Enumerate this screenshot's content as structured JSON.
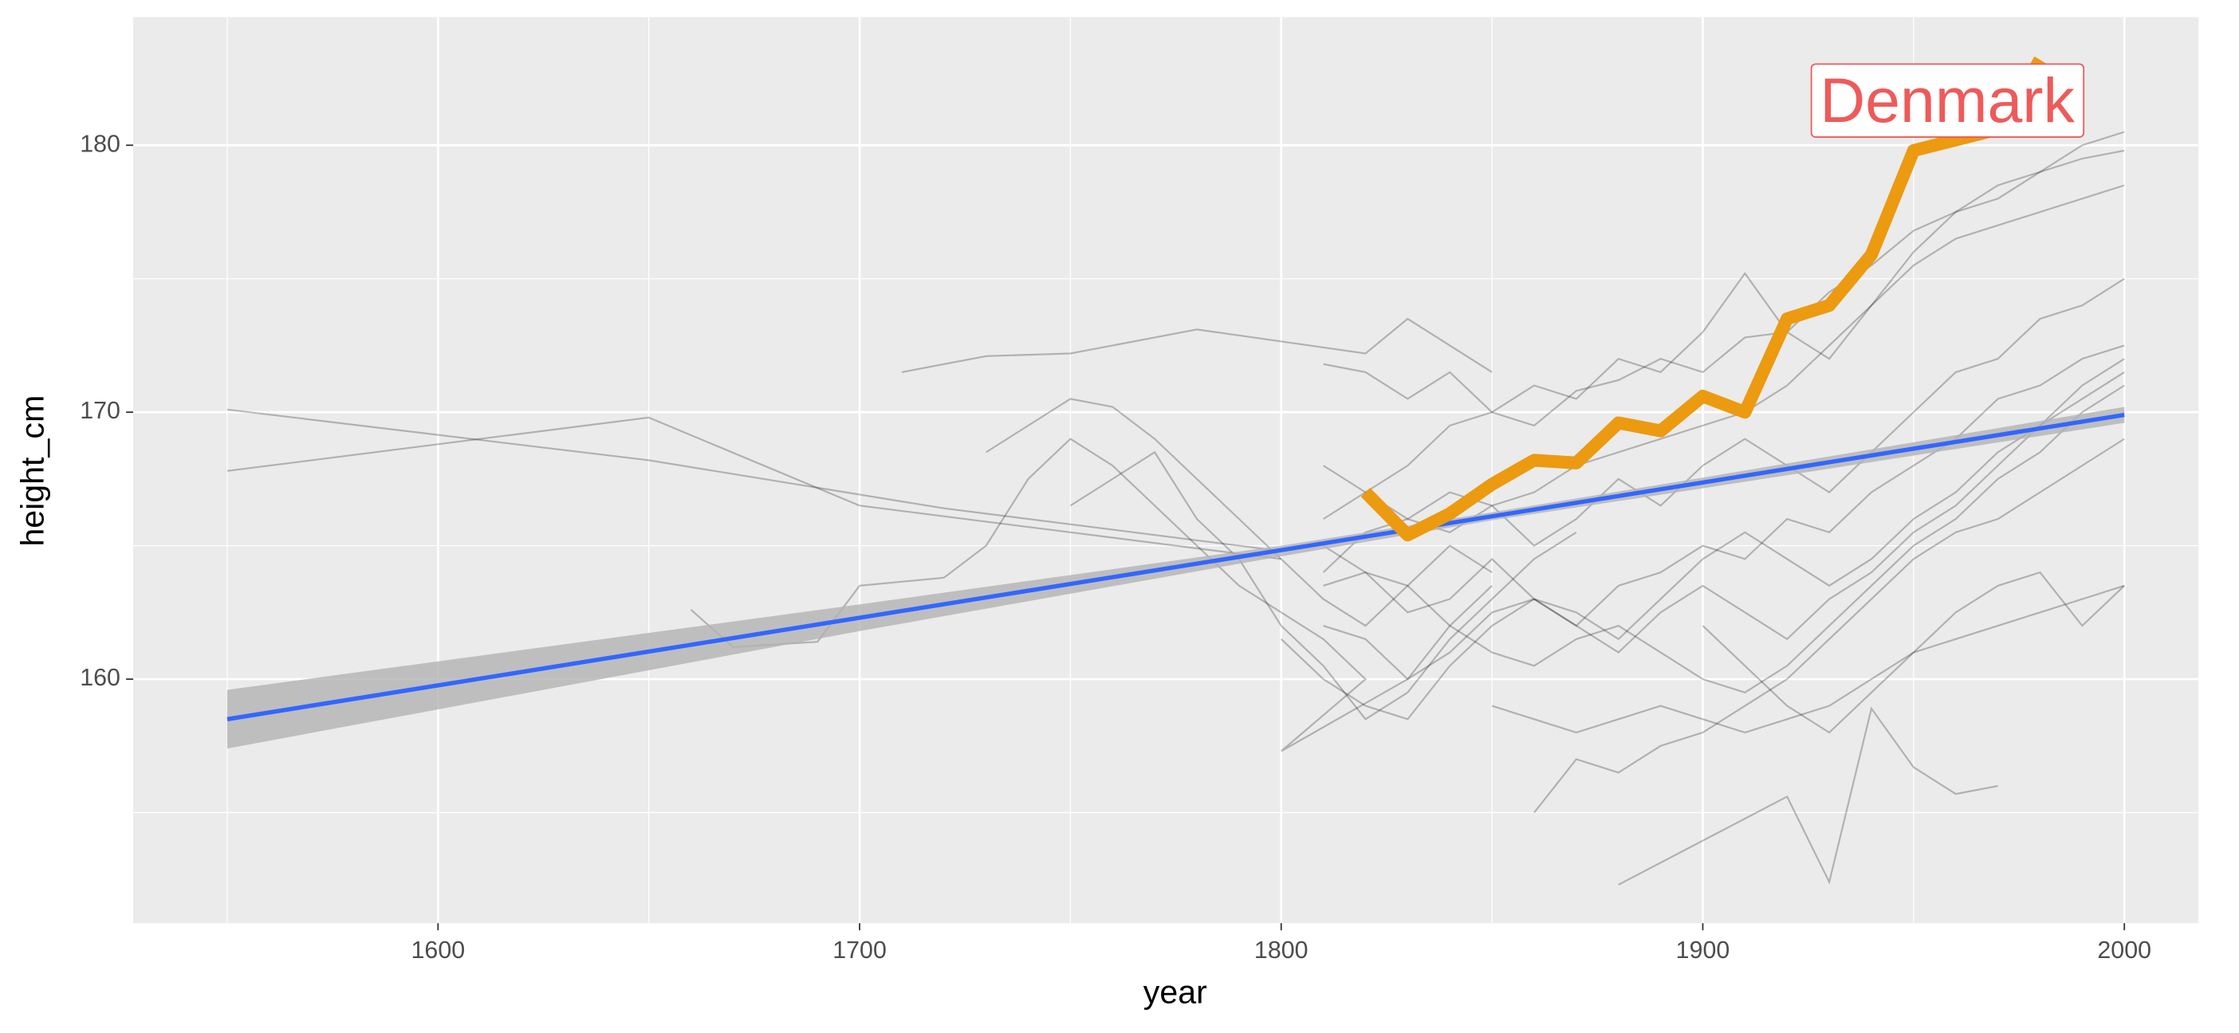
{
  "chart_data": {
    "type": "line",
    "x_label": "year",
    "y_label": "height_cm",
    "xlim": [
      1527.7,
      2017.6
    ],
    "ylim": [
      150.86,
      184.8
    ],
    "xticks": [
      1600,
      1700,
      1800,
      1900,
      2000
    ],
    "yticks": [
      160,
      170,
      180
    ],
    "x_minor_ticks": [
      1550,
      1650,
      1750,
      1850,
      1950
    ],
    "y_minor_ticks": [
      155,
      165,
      175
    ],
    "grid": true,
    "lines_color": "#000000",
    "lines": [
      {
        "x": [
          1550,
          1650,
          1720,
          1780,
          1800
        ],
        "values": [
          170.1,
          168.2,
          166.4,
          165.2,
          164.8
        ]
      },
      {
        "x": [
          1550,
          1650,
          1700,
          1750,
          1800
        ],
        "values": [
          167.8,
          169.8,
          166.5,
          165.5,
          164.5
        ]
      },
      {
        "x": [
          1710,
          1730,
          1750,
          1780,
          1820,
          1830,
          1850
        ],
        "values": [
          171.5,
          172.1,
          172.2,
          173.1,
          172.2,
          173.5,
          171.5
        ]
      },
      {
        "x": [
          1660,
          1670,
          1690,
          1700,
          1720
        ],
        "values": [
          162.6,
          161.2,
          161.4,
          163.5,
          163.8
        ]
      },
      {
        "x": [
          1880,
          1920,
          1930,
          1940,
          1950,
          1960,
          1970
        ],
        "values": [
          152.3,
          155.6,
          152.4,
          158.9,
          156.7,
          155.7,
          156.0
        ]
      },
      {
        "x": [
          1810,
          1820,
          1830,
          1840,
          1850,
          1860,
          1870,
          1880,
          1890,
          1900,
          1910,
          1920,
          1930,
          1940,
          1950,
          1960,
          1970,
          1980,
          1990,
          2000
        ],
        "values": [
          171.8,
          171.5,
          170.5,
          171.5,
          170.0,
          169.5,
          170.8,
          171.2,
          172.0,
          171.5,
          172.8,
          173.0,
          174.5,
          175.5,
          176.8,
          177.5,
          178.5,
          179.0,
          179.5,
          179.8
        ]
      },
      {
        "x": [
          1810,
          1820,
          1830,
          1840,
          1850,
          1860,
          1870,
          1880,
          1890,
          1900,
          1910,
          1920,
          1930,
          1940,
          1950,
          1960,
          1970,
          1980,
          1990,
          2000
        ],
        "values": [
          168.0,
          167.0,
          166.0,
          165.5,
          166.5,
          167.0,
          168.0,
          168.5,
          169.0,
          169.5,
          170.0,
          171.0,
          172.5,
          174.0,
          175.5,
          176.5,
          177.0,
          177.5,
          178.0,
          178.5
        ]
      },
      {
        "x": [
          1810,
          1820,
          1830,
          1840,
          1850,
          1860,
          1870,
          1880,
          1890,
          1900,
          1910,
          1920,
          1930,
          1940,
          1950,
          1960,
          1970,
          1980,
          1990,
          2000
        ],
        "values": [
          163.5,
          164.0,
          162.5,
          163.0,
          164.5,
          163.0,
          162.0,
          163.5,
          164.0,
          165.0,
          164.5,
          166.0,
          165.5,
          167.0,
          168.0,
          169.0,
          170.5,
          171.0,
          172.0,
          172.5
        ]
      },
      {
        "x": [
          1810,
          1820,
          1830,
          1840,
          1850,
          1860,
          1870,
          1880,
          1890,
          1900,
          1910,
          1920,
          1930,
          1940,
          1950,
          1960,
          1970,
          1980,
          1990,
          2000
        ],
        "values": [
          165.0,
          164.0,
          163.5,
          162.0,
          161.0,
          160.5,
          161.5,
          162.0,
          161.0,
          160.0,
          159.5,
          160.5,
          162.0,
          163.5,
          165.0,
          166.0,
          167.5,
          168.5,
          170.0,
          171.0
        ]
      },
      {
        "x": [
          1810,
          1820,
          1830,
          1840,
          1850,
          1860,
          1870,
          1880,
          1890,
          1900,
          1910,
          1920,
          1930,
          1940,
          1950,
          1960,
          1970,
          1980,
          1990,
          2000
        ],
        "values": [
          164.0,
          165.5,
          166.0,
          167.0,
          166.5,
          165.0,
          166.0,
          167.5,
          166.5,
          168.0,
          169.0,
          168.0,
          167.0,
          168.5,
          170.0,
          171.5,
          172.0,
          173.5,
          174.0,
          175.0
        ]
      },
      {
        "x": [
          1810,
          1820,
          1830,
          1840,
          1850,
          1860,
          1870,
          1880,
          1890,
          1900,
          1910,
          1920,
          1930,
          1940,
          1950,
          1960,
          1970,
          1980,
          1990,
          2000
        ],
        "values": [
          162.0,
          161.5,
          160.0,
          161.0,
          162.5,
          163.0,
          162.0,
          161.0,
          162.5,
          163.5,
          162.5,
          161.5,
          163.0,
          164.0,
          165.5,
          166.5,
          168.0,
          169.5,
          171.0,
          172.0
        ]
      },
      {
        "x": [
          1810,
          1820,
          1830,
          1840,
          1850,
          1860,
          1870,
          1880,
          1890,
          1900,
          1910,
          1920,
          1930,
          1940,
          1950,
          1960,
          1970,
          1980,
          1990,
          2000
        ],
        "values": [
          166.0,
          167.0,
          168.0,
          169.5,
          170.0,
          171.0,
          170.5,
          172.0,
          171.5,
          173.0,
          175.2,
          173.0,
          172.0,
          174.0,
          176.0,
          177.5,
          178.0,
          179.0,
          180.0,
          180.5
        ]
      },
      {
        "x": [
          1850,
          1860,
          1870,
          1880,
          1890,
          1900,
          1910,
          1920,
          1930,
          1940,
          1950,
          1960,
          1970,
          1980,
          1990,
          2000
        ],
        "values": [
          159.0,
          158.5,
          158.0,
          158.5,
          159.0,
          158.5,
          158.0,
          158.5,
          159.0,
          160.0,
          161.0,
          161.5,
          162.0,
          162.5,
          163.0,
          163.5
        ]
      },
      {
        "x": [
          1800,
          1810,
          1820,
          1830,
          1840,
          1850,
          1860,
          1870,
          1880,
          1890,
          1900,
          1910,
          1920,
          1930,
          1940,
          1950,
          1960,
          1970,
          1980,
          1990,
          2000
        ],
        "values": [
          161.5,
          160.0,
          159.0,
          158.5,
          160.5,
          162.0,
          163.0,
          162.5,
          161.5,
          163.0,
          164.5,
          165.5,
          164.5,
          163.5,
          164.5,
          166.0,
          167.0,
          168.5,
          169.5,
          170.5,
          171.5
        ]
      },
      {
        "x": [
          1730,
          1740,
          1750,
          1760,
          1770,
          1780,
          1790,
          1800,
          1810,
          1820,
          1830,
          1840,
          1850
        ],
        "values": [
          168.5,
          169.5,
          170.5,
          170.2,
          169.0,
          167.5,
          166.0,
          164.5,
          163.0,
          162.0,
          163.5,
          165.0,
          164.0
        ]
      },
      {
        "x": [
          1720,
          1730,
          1740,
          1750,
          1760,
          1770,
          1780,
          1790,
          1800,
          1810,
          1820,
          1800,
          1830,
          1840,
          1850
        ],
        "values": [
          163.8,
          165.0,
          167.5,
          169.0,
          168.0,
          166.5,
          165.0,
          163.5,
          162.5,
          161.5,
          160.0,
          157.3,
          160.0,
          162.0,
          163.5
        ]
      },
      {
        "x": [
          1750,
          1760,
          1770,
          1780,
          1790,
          1800,
          1810,
          1820,
          1830,
          1840,
          1850,
          1860,
          1870
        ],
        "values": [
          166.5,
          167.5,
          168.5,
          166.0,
          164.5,
          162.0,
          160.5,
          158.5,
          159.5,
          161.5,
          163.0,
          164.5,
          165.5
        ]
      },
      {
        "x": [
          1860,
          1870,
          1880,
          1890,
          1900,
          1910,
          1920,
          1930,
          1940,
          1950,
          1960,
          1970,
          1980,
          1990,
          2000
        ],
        "values": [
          155.0,
          157.0,
          156.5,
          157.5,
          158.0,
          159.0,
          160.0,
          161.5,
          163.0,
          164.5,
          165.5,
          166.0,
          167.0,
          168.0,
          169.0
        ]
      },
      {
        "x": [
          1900,
          1910,
          1920,
          1930,
          1940,
          1950,
          1960,
          1970,
          1980,
          1990,
          2000
        ],
        "values": [
          162.0,
          160.5,
          159.0,
          158.0,
          159.5,
          161.0,
          162.5,
          163.5,
          164.0,
          162.0,
          163.5
        ]
      }
    ],
    "series": [
      {
        "name": "Denmark",
        "color": "#ec9a10",
        "x": [
          1820,
          1830,
          1840,
          1850,
          1860,
          1870,
          1880,
          1890,
          1900,
          1910,
          1920,
          1930,
          1940,
          1950,
          1960,
          1970,
          1980
        ],
        "values": [
          167.0,
          165.4,
          166.2,
          167.3,
          168.2,
          168.1,
          169.6,
          169.3,
          170.6,
          170.0,
          173.5,
          174.0,
          175.9,
          179.8,
          180.2,
          180.6,
          183.2
        ]
      }
    ],
    "label_color": "#ee5a5a",
    "fit": {
      "color": "#3366ff",
      "x": [
        1550,
        2000
      ],
      "values": [
        158.5,
        169.9
      ]
    },
    "band": {
      "color": "#b3b3b3",
      "x": [
        1550,
        1700,
        1800,
        1850,
        1900,
        2000
      ],
      "lower": [
        157.4,
        161.8,
        164.6,
        165.95,
        167.15,
        169.6
      ],
      "upper": [
        159.6,
        162.8,
        165.0,
        166.25,
        167.55,
        170.2
      ]
    }
  }
}
